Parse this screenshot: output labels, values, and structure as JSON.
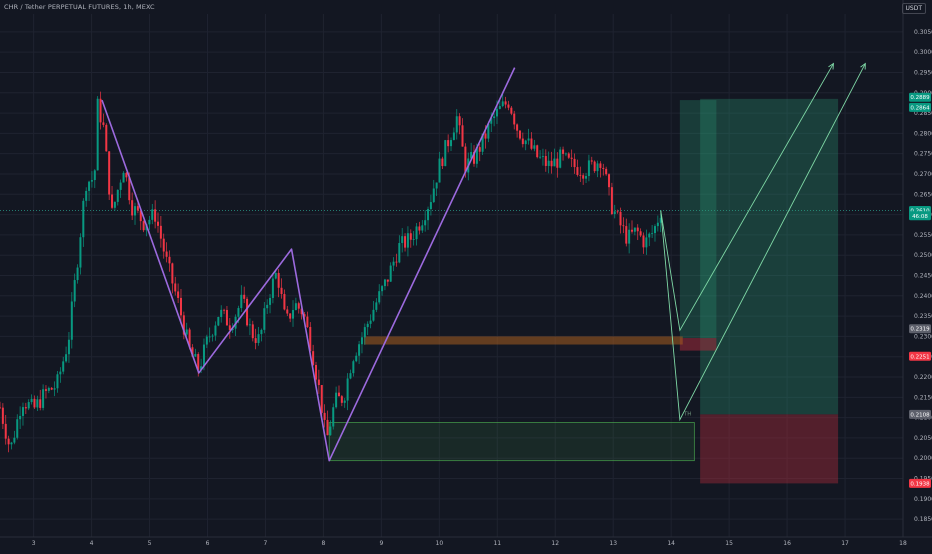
{
  "header": {
    "symbol_title": "CHR / Tether PERPETUAL FUTURES, 1h, MEXC",
    "currency": "USDT"
  },
  "price_tags": [
    {
      "label": "0.2889",
      "value": 0.2889,
      "color": "#089981"
    },
    {
      "label": "0.2864",
      "value": 0.2864,
      "color": "#089981"
    },
    {
      "label": "0.2610",
      "value": 0.261,
      "color": "#089981"
    },
    {
      "label": "46:08",
      "value": 0.2597,
      "color": "#089981"
    },
    {
      "label": "0.2319",
      "value": 0.2319,
      "color": "#5d606b"
    },
    {
      "label": "0.2251",
      "value": 0.2251,
      "color": "#f23645"
    },
    {
      "label": "0.2108",
      "value": 0.2108,
      "color": "#5d606b"
    },
    {
      "label": "0.1938",
      "value": 0.1938,
      "color": "#f23645"
    }
  ],
  "annotation": {
    "label": "TH"
  },
  "colors": {
    "background": "#131722",
    "up": "#089981",
    "down": "#f23645",
    "pattern_line": "#9c6ade",
    "projection": "#7fd8a6",
    "target_zone": "#2a9d78",
    "stop_zone": "#a12a3a",
    "resistance_band": "#a65d1f",
    "support_box": "#4caf50"
  },
  "chart_data": {
    "type": "candlestick",
    "title": "CHR / Tether PERPETUAL FUTURES, 1h, MEXC",
    "ylabel": "USDT",
    "ylim": [
      0.1806,
      0.3094
    ],
    "xlim": [
      2.42,
      18.0
    ],
    "x_ticks": [
      {
        "label": "3",
        "x": 3
      },
      {
        "label": "4",
        "x": 4
      },
      {
        "label": "5",
        "x": 5
      },
      {
        "label": "6",
        "x": 6
      },
      {
        "label": "7",
        "x": 7
      },
      {
        "label": "8",
        "x": 8
      },
      {
        "label": "9",
        "x": 9
      },
      {
        "label": "10",
        "x": 10
      },
      {
        "label": "11",
        "x": 11
      },
      {
        "label": "12",
        "x": 12
      },
      {
        "label": "13",
        "x": 13
      },
      {
        "label": "14",
        "x": 14
      },
      {
        "label": "15",
        "x": 15
      },
      {
        "label": "16",
        "x": 16
      },
      {
        "label": "17",
        "x": 17
      },
      {
        "label": "18",
        "x": 18
      }
    ],
    "y_ticks": [
      "0.1850",
      "0.1900",
      "0.1950",
      "0.2000",
      "0.2050",
      "0.2100",
      "0.2150",
      "0.2200",
      "0.2250",
      "0.2300",
      "0.2350",
      "0.2400",
      "0.2450",
      "0.2500",
      "0.2550",
      "0.2600",
      "0.2650",
      "0.2700",
      "0.2750",
      "0.2800",
      "0.2850",
      "0.2900",
      "0.2950",
      "0.3000",
      "0.3050"
    ],
    "price_path": [
      [
        2.42,
        0.2125
      ],
      [
        2.6,
        0.202
      ],
      [
        2.8,
        0.2145
      ],
      [
        3.0,
        0.212
      ],
      [
        3.2,
        0.216
      ],
      [
        3.4,
        0.218
      ],
      [
        3.6,
        0.229
      ],
      [
        3.75,
        0.248
      ],
      [
        3.9,
        0.268
      ],
      [
        4.05,
        0.269
      ],
      [
        4.1,
        0.287
      ],
      [
        4.2,
        0.282
      ],
      [
        4.35,
        0.26
      ],
      [
        4.55,
        0.272
      ],
      [
        4.7,
        0.262
      ],
      [
        4.9,
        0.258
      ],
      [
        5.1,
        0.26
      ],
      [
        5.3,
        0.248
      ],
      [
        5.5,
        0.238
      ],
      [
        5.7,
        0.226
      ],
      [
        5.85,
        0.222
      ],
      [
        6.0,
        0.229
      ],
      [
        6.2,
        0.236
      ],
      [
        6.4,
        0.233
      ],
      [
        6.6,
        0.239
      ],
      [
        6.75,
        0.231
      ],
      [
        6.9,
        0.229
      ],
      [
        7.05,
        0.24
      ],
      [
        7.2,
        0.246
      ],
      [
        7.35,
        0.233
      ],
      [
        7.5,
        0.238
      ],
      [
        7.65,
        0.236
      ],
      [
        7.8,
        0.227
      ],
      [
        7.95,
        0.215
      ],
      [
        8.05,
        0.204
      ],
      [
        8.2,
        0.214
      ],
      [
        8.35,
        0.215
      ],
      [
        8.5,
        0.225
      ],
      [
        8.7,
        0.231
      ],
      [
        8.9,
        0.238
      ],
      [
        9.1,
        0.244
      ],
      [
        9.3,
        0.252
      ],
      [
        9.5,
        0.254
      ],
      [
        9.7,
        0.259
      ],
      [
        9.85,
        0.264
      ],
      [
        10.0,
        0.272
      ],
      [
        10.15,
        0.278
      ],
      [
        10.3,
        0.284
      ],
      [
        10.45,
        0.272
      ],
      [
        10.6,
        0.274
      ],
      [
        10.75,
        0.278
      ],
      [
        10.9,
        0.283
      ],
      [
        11.05,
        0.286
      ],
      [
        11.2,
        0.288
      ],
      [
        11.35,
        0.281
      ],
      [
        11.5,
        0.278
      ],
      [
        11.7,
        0.274
      ],
      [
        11.9,
        0.272
      ],
      [
        12.1,
        0.274
      ],
      [
        12.3,
        0.272
      ],
      [
        12.5,
        0.271
      ],
      [
        12.65,
        0.272
      ],
      [
        12.8,
        0.274
      ],
      [
        12.95,
        0.263
      ],
      [
        13.1,
        0.258
      ],
      [
        13.25,
        0.254
      ],
      [
        13.4,
        0.256
      ],
      [
        13.55,
        0.253
      ],
      [
        13.7,
        0.256
      ],
      [
        13.82,
        0.261
      ]
    ],
    "pattern_lines": [
      {
        "name": "",
        "points": [
          [
            4.18,
            0.2882
          ],
          [
            5.85,
            0.221
          ],
          [
            7.45,
            0.2515
          ],
          [
            8.1,
            0.1994
          ],
          [
            11.3,
            0.2962
          ]
        ]
      }
    ],
    "projections": [
      {
        "points": [
          [
            13.82,
            0.261
          ],
          [
            14.15,
            0.2315
          ],
          [
            16.8,
            0.2972
          ]
        ]
      },
      {
        "points": [
          [
            13.82,
            0.261
          ],
          [
            14.15,
            0.2095
          ],
          [
            17.35,
            0.2972
          ]
        ]
      }
    ],
    "zones": [
      {
        "name": "target_zone_1",
        "x": [
          14.15,
          14.78
        ],
        "y": [
          0.2296,
          0.2882
        ]
      },
      {
        "name": "target_zone_2",
        "x": [
          14.5,
          16.88
        ],
        "y": [
          0.2108,
          0.2885
        ]
      },
      {
        "name": "stop_zone_1",
        "x": [
          14.15,
          14.78
        ],
        "y": [
          0.2265,
          0.2296
        ]
      },
      {
        "name": "stop_zone_2",
        "x": [
          14.5,
          16.88
        ],
        "y": [
          0.1938,
          0.2108
        ]
      },
      {
        "name": "resistance_band",
        "x": [
          8.7,
          14.2
        ],
        "y": [
          0.228,
          0.23
        ]
      },
      {
        "name": "support_box",
        "x": [
          8.1,
          14.4
        ],
        "y": [
          0.1994,
          0.2088
        ]
      }
    ],
    "horizontal_line": {
      "y": 0.261
    },
    "annotations": [
      {
        "text": "TH",
        "x": 14.15,
        "y": 0.2105
      }
    ],
    "grid": true,
    "legend": "none"
  }
}
